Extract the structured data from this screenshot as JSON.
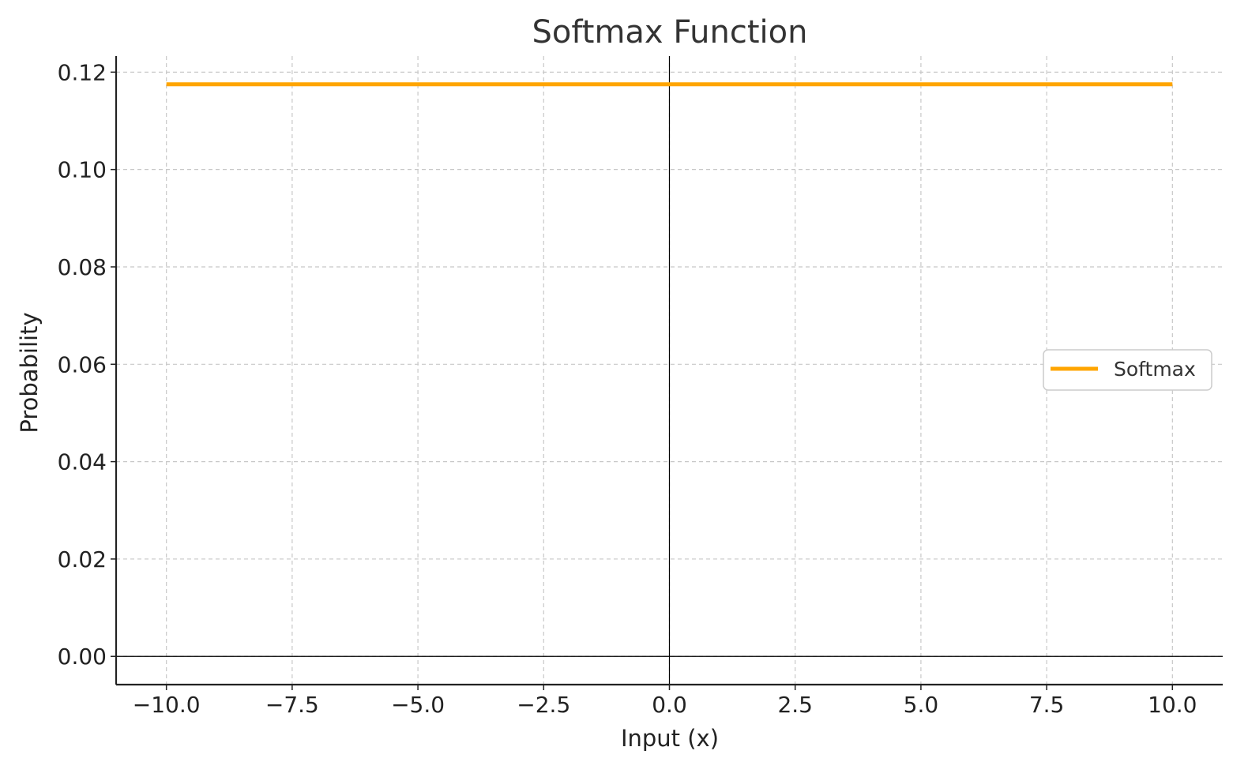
{
  "chart_data": {
    "type": "line",
    "title": "Softmax Function",
    "xlabel": "Input (x)",
    "ylabel": "Probability",
    "xlim": [
      -11,
      11
    ],
    "ylim": [
      -0.0058,
      0.1233
    ],
    "xticks": [
      -10.0,
      -7.5,
      -5.0,
      -2.5,
      0.0,
      2.5,
      5.0,
      7.5,
      10.0
    ],
    "xtick_labels": [
      "−10.0",
      "−7.5",
      "−5.0",
      "−2.5",
      "0.0",
      "2.5",
      "5.0",
      "7.5",
      "10.0"
    ],
    "yticks": [
      0.0,
      0.02,
      0.04,
      0.06,
      0.08,
      0.1,
      0.12
    ],
    "ytick_labels": [
      "0.00",
      "0.02",
      "0.04",
      "0.06",
      "0.08",
      "0.10",
      "0.12"
    ],
    "grid": true,
    "reference_lines": {
      "x": 0,
      "y": 0
    },
    "legend": {
      "position": "center-right"
    },
    "series": [
      {
        "name": "Softmax",
        "color": "#FFA500",
        "x": [
          -10,
          -7.5,
          -5,
          -2.5,
          0,
          2.5,
          5,
          7.5,
          10
        ],
        "values": [
          0.1175,
          0.1175,
          0.1175,
          0.1175,
          0.1175,
          0.1175,
          0.1175,
          0.1175,
          0.1175
        ]
      }
    ]
  }
}
